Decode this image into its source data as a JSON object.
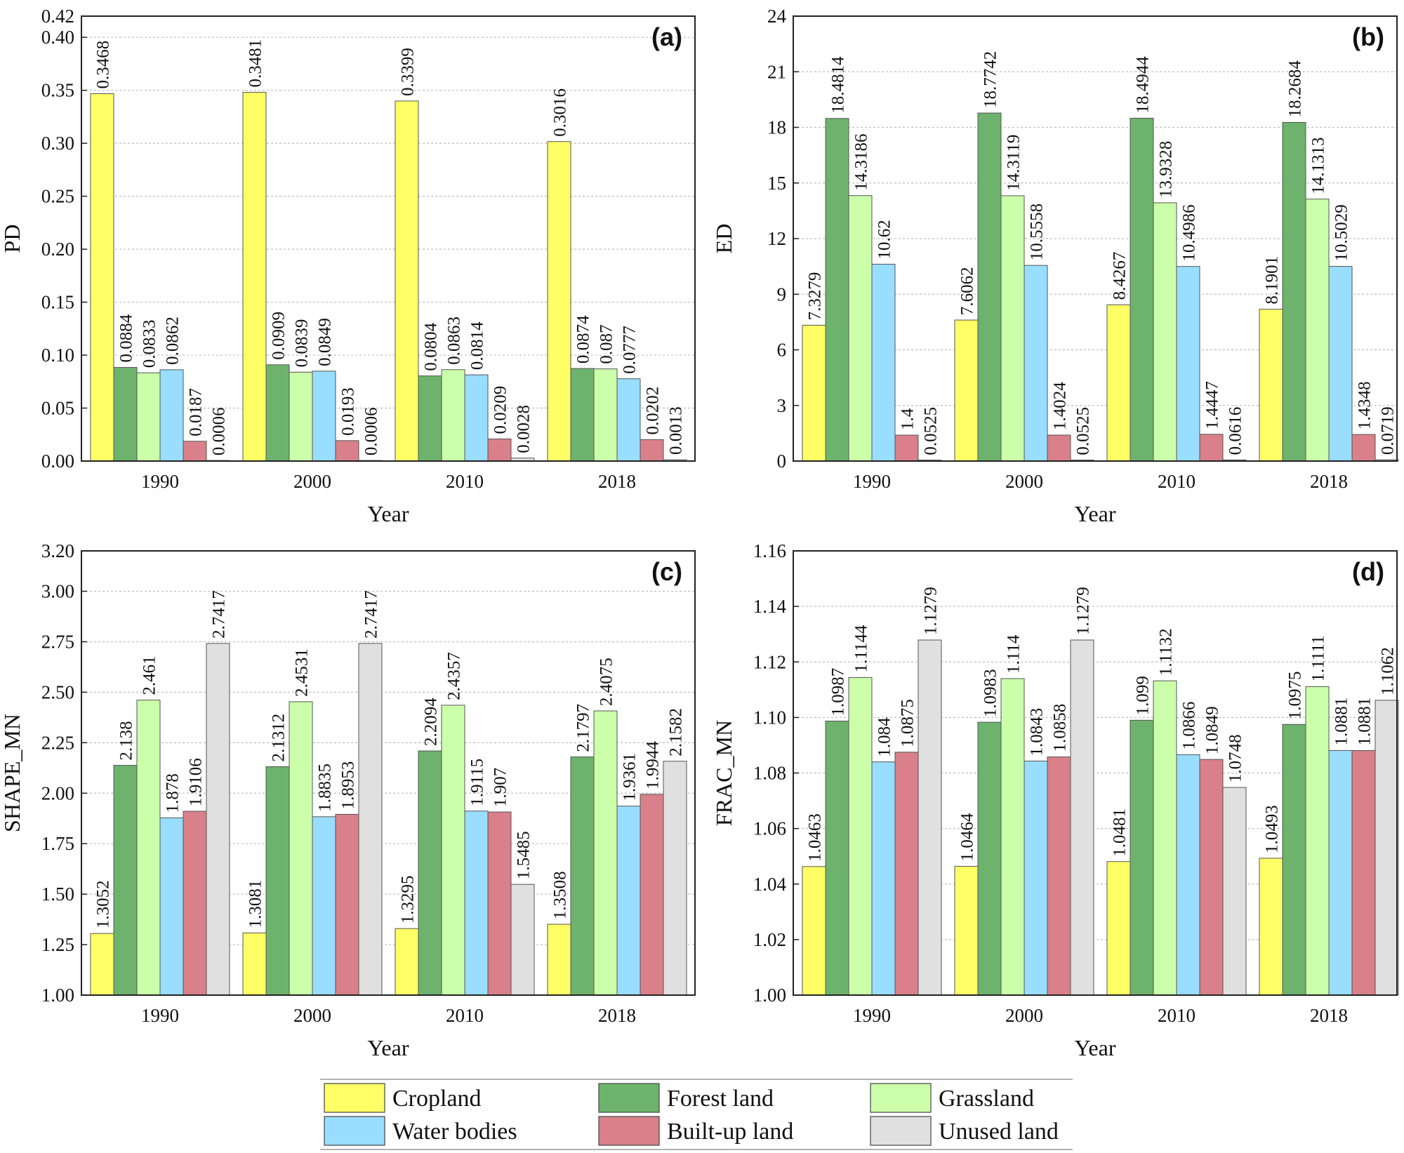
{
  "chart_data": [
    {
      "type": "bar",
      "panel": "(a)",
      "categories": [
        "1990",
        "2000",
        "2010",
        "2018"
      ],
      "xlabel": "Year",
      "ylabel": "PD",
      "ylim": [
        0,
        0.42
      ],
      "yticks": [
        "0.00",
        "0.05",
        "0.10",
        "0.15",
        "0.20",
        "0.25",
        "0.30",
        "0.35",
        "0.40",
        "0.42"
      ],
      "grid": true,
      "series": [
        {
          "name": "Cropland",
          "values": [
            0.3468,
            0.3481,
            0.3399,
            0.3016
          ],
          "labels": [
            "0.3468",
            "0.3481",
            "0.3399",
            "0.3016"
          ]
        },
        {
          "name": "Forest land",
          "values": [
            0.0884,
            0.0909,
            0.0804,
            0.0874
          ],
          "labels": [
            "0.0884",
            "0.0909",
            "0.0804",
            "0.0874"
          ]
        },
        {
          "name": "Grassland",
          "values": [
            0.0833,
            0.0839,
            0.0863,
            0.087
          ],
          "labels": [
            "0.0833",
            "0.0839",
            "0.0863",
            "0.087"
          ]
        },
        {
          "name": "Water bodies",
          "values": [
            0.0862,
            0.0849,
            0.0814,
            0.0777
          ],
          "labels": [
            "0.0862",
            "0.0849",
            "0.0814",
            "0.0777"
          ]
        },
        {
          "name": "Built-up land",
          "values": [
            0.0187,
            0.0193,
            0.0209,
            0.0202
          ],
          "labels": [
            "0.0187",
            "0.0193",
            "0.0209",
            "0.0202"
          ]
        },
        {
          "name": "Unused land",
          "values": [
            0.0006,
            0.0006,
            0.0028,
            0.0013
          ],
          "labels": [
            "0.0006",
            "0.0006",
            "0.0028",
            "0.0013"
          ]
        }
      ]
    },
    {
      "type": "bar",
      "panel": "(b)",
      "categories": [
        "1990",
        "2000",
        "2010",
        "2018"
      ],
      "xlabel": "Year",
      "ylabel": "ED",
      "ylim": [
        0,
        24
      ],
      "yticks": [
        "0",
        "3",
        "6",
        "9",
        "12",
        "15",
        "18",
        "21",
        "24"
      ],
      "grid": true,
      "series": [
        {
          "name": "Cropland",
          "values": [
            7.3279,
            7.6062,
            8.4267,
            8.1901
          ],
          "labels": [
            "7.3279",
            "7.6062",
            "8.4267",
            "8.1901"
          ]
        },
        {
          "name": "Forest land",
          "values": [
            18.4814,
            18.7742,
            18.4944,
            18.2684
          ],
          "labels": [
            "18.4814",
            "18.7742",
            "18.4944",
            "18.2684"
          ]
        },
        {
          "name": "Grassland",
          "values": [
            14.3186,
            14.3119,
            13.9328,
            14.1313
          ],
          "labels": [
            "14.3186",
            "14.3119",
            "13.9328",
            "14.1313"
          ]
        },
        {
          "name": "Water bodies",
          "values": [
            10.62,
            10.5558,
            10.4986,
            10.5029
          ],
          "labels": [
            "10.62",
            "10.5558",
            "10.4986",
            "10.5029"
          ]
        },
        {
          "name": "Built-up land",
          "values": [
            1.4,
            1.4024,
            1.4447,
            1.4348
          ],
          "labels": [
            "1.4",
            "1.4024",
            "1.4447",
            "1.4348"
          ]
        },
        {
          "name": "Unused land",
          "values": [
            0.0525,
            0.0525,
            0.0616,
            0.0719
          ],
          "labels": [
            "0.0525",
            "0.0525",
            "0.0616",
            "0.0719"
          ]
        }
      ]
    },
    {
      "type": "bar",
      "panel": "(c)",
      "categories": [
        "1990",
        "2000",
        "2010",
        "2018"
      ],
      "xlabel": "Year",
      "ylabel": "SHAPE_MN",
      "ylim": [
        1.0,
        3.2
      ],
      "yticks": [
        "1.00",
        "1.25",
        "1.50",
        "1.75",
        "2.00",
        "2.25",
        "2.50",
        "2.75",
        "3.00",
        "3.20"
      ],
      "grid": true,
      "series": [
        {
          "name": "Cropland",
          "values": [
            1.3052,
            1.3081,
            1.3295,
            1.3508
          ],
          "labels": [
            "1.3052",
            "1.3081",
            "1.3295",
            "1.3508"
          ]
        },
        {
          "name": "Forest land",
          "values": [
            2.138,
            2.1312,
            2.2094,
            2.1797
          ],
          "labels": [
            "2.138",
            "2.1312",
            "2.2094",
            "2.1797"
          ]
        },
        {
          "name": "Grassland",
          "values": [
            2.461,
            2.4531,
            2.4357,
            2.4075
          ],
          "labels": [
            "2.461",
            "2.4531",
            "2.4357",
            "2.4075"
          ]
        },
        {
          "name": "Water bodies",
          "values": [
            1.878,
            1.8835,
            1.9115,
            1.9361
          ],
          "labels": [
            "1.878",
            "1.8835",
            "1.9115",
            "1.9361"
          ]
        },
        {
          "name": "Built-up land",
          "values": [
            1.9106,
            1.8953,
            1.907,
            1.9944
          ],
          "labels": [
            "1.9106",
            "1.8953",
            "1.907",
            "1.9944"
          ]
        },
        {
          "name": "Unused land",
          "values": [
            2.7417,
            2.7417,
            1.5485,
            2.1582
          ],
          "labels": [
            "2.7417",
            "2.7417",
            "1.5485",
            "2.1582"
          ]
        }
      ]
    },
    {
      "type": "bar",
      "panel": "(d)",
      "categories": [
        "1990",
        "2000",
        "2010",
        "2018"
      ],
      "xlabel": "Year",
      "ylabel": "FRAC_MN",
      "ylim": [
        1.0,
        1.16
      ],
      "yticks": [
        "1.00",
        "1.02",
        "1.04",
        "1.06",
        "1.08",
        "1.10",
        "1.12",
        "1.14",
        "1.16"
      ],
      "grid": true,
      "series": [
        {
          "name": "Cropland",
          "values": [
            1.0463,
            1.0464,
            1.0481,
            1.0493
          ],
          "labels": [
            "1.0463",
            "1.0464",
            "1.0481",
            "1.0493"
          ]
        },
        {
          "name": "Forest land",
          "values": [
            1.0987,
            1.0983,
            1.099,
            1.0975
          ],
          "labels": [
            "1.0987",
            "1.0983",
            "1.099",
            "1.0975"
          ]
        },
        {
          "name": "Grassland",
          "values": [
            1.1144,
            1.114,
            1.1132,
            1.1111
          ],
          "labels": [
            "1.1144",
            "1.114",
            "1.1132",
            "1.1111"
          ]
        },
        {
          "name": "Water bodies",
          "values": [
            1.084,
            1.0843,
            1.0866,
            1.0881
          ],
          "labels": [
            "1.084",
            "1.0843",
            "1.0866",
            "1.0881"
          ]
        },
        {
          "name": "Built-up land",
          "values": [
            1.0875,
            1.0858,
            1.0849,
            1.0881
          ],
          "labels": [
            "1.0875",
            "1.0858",
            "1.0849",
            "1.0881"
          ]
        },
        {
          "name": "Unused land",
          "values": [
            1.1279,
            1.1279,
            1.0748,
            1.1062
          ],
          "labels": [
            "1.1279",
            "1.1279",
            "1.0748",
            "1.1062"
          ]
        }
      ]
    }
  ],
  "legend": {
    "entries": [
      "Cropland",
      "Forest land",
      "Grassland",
      "Water bodies",
      "Built-up land",
      "Unused land"
    ],
    "colors": [
      "#ffff66",
      "#6db36d",
      "#ccffaa",
      "#99ddff",
      "#d9808a",
      "#e0e0e0"
    ]
  }
}
